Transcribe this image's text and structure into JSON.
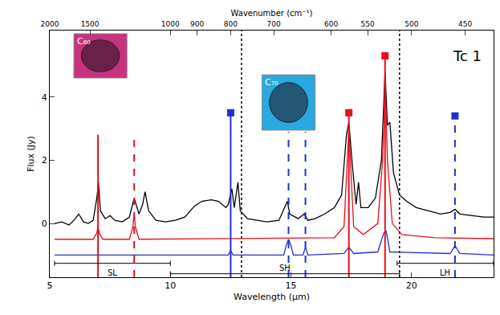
{
  "chart_data": {
    "type": "line",
    "x_label": "Wavelength (µm)",
    "y_label": "Flux (Jy)",
    "x2_label": "Wavenumber (cm⁻¹)",
    "xlim": [
      5,
      23.4
    ],
    "ylim": [
      -1.7,
      6.1
    ],
    "xticks": [
      5,
      10,
      15,
      20
    ],
    "yticks": [
      0,
      2,
      4
    ],
    "x2ticks": [
      2000,
      1500,
      1000,
      900,
      800,
      700,
      600,
      550,
      500,
      450
    ],
    "grid": false,
    "series": [
      {
        "color": "#000000",
        "line_style": "solid",
        "x": [
          5.2,
          5.5,
          5.8,
          6.0,
          6.2,
          6.4,
          6.6,
          6.8,
          6.95,
          7.02,
          7.1,
          7.3,
          7.5,
          7.7,
          8.0,
          8.3,
          8.5,
          8.7,
          8.85,
          8.95,
          9.1,
          9.4,
          9.8,
          10.2,
          10.6,
          11.0,
          11.3,
          11.7,
          12.0,
          12.3,
          12.4,
          12.55,
          12.65,
          12.8,
          12.9,
          13.2,
          13.6,
          14.0,
          14.5,
          14.85,
          14.95,
          15.3,
          15.55,
          15.7,
          16.0,
          16.4,
          16.8,
          17.1,
          17.3,
          17.4,
          17.55,
          17.7,
          17.8,
          17.9,
          18.2,
          18.5,
          18.75,
          18.9,
          19.0,
          19.1,
          19.25,
          19.5,
          19.8,
          20.2,
          20.7,
          21.2,
          21.6,
          21.8,
          22.0,
          22.5,
          23.0,
          23.4
        ],
        "values": [
          0.0,
          0.05,
          -0.05,
          0.1,
          0.3,
          0.05,
          0.0,
          0.1,
          0.8,
          1.3,
          0.4,
          0.15,
          0.25,
          0.1,
          0.05,
          0.2,
          0.8,
          0.3,
          0.6,
          1.0,
          0.4,
          0.1,
          0.05,
          0.1,
          0.2,
          0.55,
          0.7,
          0.75,
          0.7,
          0.5,
          0.6,
          1.1,
          0.5,
          1.3,
          0.4,
          0.15,
          0.1,
          0.05,
          0.1,
          0.7,
          0.3,
          0.15,
          0.3,
          0.1,
          0.15,
          0.3,
          0.5,
          0.9,
          2.8,
          3.2,
          1.8,
          0.6,
          1.3,
          0.5,
          0.5,
          0.8,
          2.0,
          4.8,
          3.1,
          3.2,
          1.6,
          0.9,
          0.7,
          0.5,
          0.4,
          0.3,
          0.35,
          0.45,
          0.3,
          0.25,
          0.2,
          0.2
        ]
      },
      {
        "color": "#e8101a",
        "line_style": "solid",
        "x": [
          5.2,
          6.8,
          6.95,
          7.0,
          7.05,
          7.2,
          8.3,
          8.45,
          8.5,
          8.55,
          8.7,
          16.8,
          17.2,
          17.4,
          17.6,
          18.0,
          18.6,
          18.8,
          18.9,
          19.0,
          19.2,
          19.6,
          21.0,
          23.4
        ],
        "values": [
          -0.5,
          -0.5,
          -0.3,
          -0.1,
          -0.3,
          -0.5,
          -0.5,
          -0.1,
          0.3,
          -0.1,
          -0.5,
          -0.45,
          -0.1,
          3.0,
          -0.1,
          -0.35,
          0.0,
          2.0,
          4.5,
          2.0,
          0.0,
          -0.35,
          -0.45,
          -0.48
        ]
      },
      {
        "color": "#2030d0",
        "line_style": "solid",
        "x": [
          5.2,
          12.4,
          12.5,
          12.6,
          14.7,
          14.8,
          14.9,
          15.0,
          15.1,
          15.5,
          15.6,
          15.7,
          17.2,
          17.4,
          17.6,
          18.6,
          18.85,
          18.95,
          19.1,
          21.6,
          21.8,
          22.0,
          23.4
        ],
        "values": [
          -1.0,
          -1.0,
          -0.85,
          -1.0,
          -1.0,
          -0.7,
          -0.5,
          -0.7,
          -1.0,
          -1.0,
          -0.75,
          -1.0,
          -0.95,
          -0.75,
          -0.95,
          -0.9,
          -0.3,
          -0.25,
          -0.9,
          -0.95,
          -0.7,
          -0.95,
          -1.0
        ]
      }
    ],
    "band_lines": [
      {
        "x": 7.0,
        "top": 2.8,
        "color": "#e8101a",
        "line_style": "solid",
        "marker": "none"
      },
      {
        "x": 8.5,
        "top": 2.8,
        "color": "#e8101a",
        "line_style": "dash",
        "marker": "none"
      },
      {
        "x": 17.4,
        "top": 3.5,
        "color": "#e8101a",
        "line_style": "solid",
        "marker": "square"
      },
      {
        "x": 18.9,
        "top": 5.3,
        "color": "#e8101a",
        "line_style": "solid",
        "marker": "square"
      },
      {
        "x": 12.5,
        "top": 3.5,
        "color": "#2030d0",
        "line_style": "solid",
        "marker": "square"
      },
      {
        "x": 14.9,
        "top": 2.9,
        "color": "#2030d0",
        "line_style": "dash",
        "marker": "none"
      },
      {
        "x": 15.6,
        "top": 2.9,
        "color": "#2030d0",
        "line_style": "dash",
        "marker": "none"
      },
      {
        "x": 21.8,
        "top": 3.4,
        "color": "#2030d0",
        "line_style": "dash",
        "marker": "square"
      }
    ],
    "module_edges": [
      {
        "x": 12.95,
        "color": "#000000",
        "line_style": "dot"
      },
      {
        "x": 19.5,
        "color": "#000000",
        "line_style": "dot"
      }
    ],
    "modules": [
      {
        "label": "SL",
        "x": [
          5.2,
          10.0
        ],
        "y": -1.26,
        "label_y": -1.55
      },
      {
        "label": "SH",
        "x": [
          10.0,
          19.5
        ],
        "y": -1.59,
        "label_y": -1.4
      },
      {
        "label": "LH",
        "x": [
          19.4,
          23.4
        ],
        "y": -1.26,
        "label_y": -1.55
      }
    ],
    "insets": [
      {
        "label": "C₆₀",
        "x": [
          6.0,
          8.2
        ],
        "y": [
          4.6,
          6.0
        ],
        "color": "#c8327e"
      },
      {
        "label": "C₇₀",
        "x": [
          13.8,
          16.0
        ],
        "y": [
          2.95,
          4.7
        ],
        "color": "#2aa8e0"
      }
    ],
    "annotations": [
      {
        "text": "Tc 1",
        "x": 22.3,
        "y": 5.3
      }
    ]
  }
}
